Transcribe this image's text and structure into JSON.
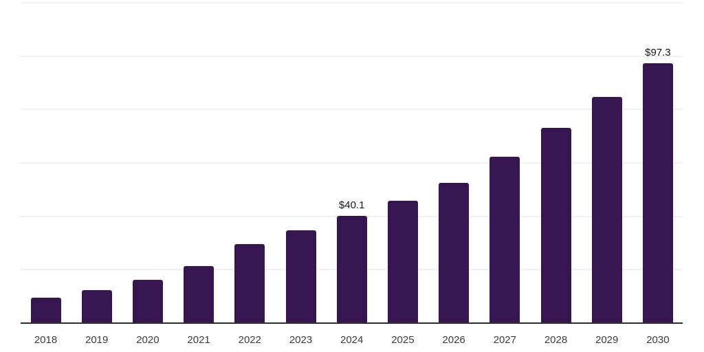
{
  "chart_data": {
    "type": "bar",
    "title": "",
    "xlabel": "",
    "ylabel": "",
    "categories": [
      "2018",
      "2019",
      "2020",
      "2021",
      "2022",
      "2023",
      "2024",
      "2025",
      "2026",
      "2027",
      "2028",
      "2029",
      "2030"
    ],
    "values": [
      9.5,
      12.4,
      16.2,
      21.4,
      29.6,
      34.8,
      40.1,
      45.8,
      52.5,
      62.3,
      73.1,
      84.7,
      97.3
    ],
    "data_labels": [
      "",
      "",
      "",
      "",
      "",
      "",
      "$40.1",
      "",
      "",
      "",
      "",
      "",
      "$97.3"
    ],
    "value_prefix": "$",
    "ylim": [
      0,
      120
    ],
    "grid": "horizontal",
    "grid_step": 20,
    "legend": "none",
    "y_tick_labels_visible": false,
    "colors": {
      "bar": "#361550",
      "axis": "#2e2e2e",
      "gridline": "#f0f0f0",
      "tick_label": "#3c3c3c",
      "data_label": "#161616",
      "background": "#ffffff"
    }
  }
}
